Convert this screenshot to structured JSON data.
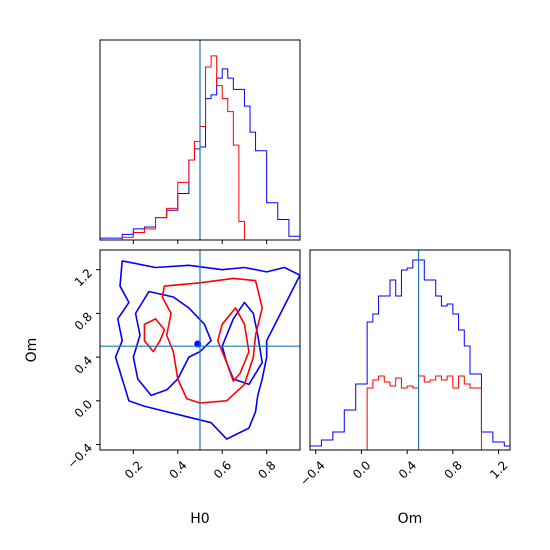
{
  "chart_data": [
    {
      "panel": "H0 marginal",
      "type": "step-histogram",
      "x_range": [
        0.05,
        0.95
      ],
      "bin_edges": [
        0.05,
        0.1,
        0.15,
        0.2,
        0.25,
        0.3,
        0.35,
        0.4,
        0.45,
        0.475,
        0.5,
        0.525,
        0.55,
        0.575,
        0.6,
        0.625,
        0.65,
        0.675,
        0.7,
        0.725,
        0.75,
        0.8,
        0.85,
        0.9,
        0.95
      ],
      "series": [
        {
          "color": "#0000ff",
          "values": [
            0.01,
            0.01,
            0.03,
            0.06,
            0.07,
            0.12,
            0.16,
            0.25,
            0.43,
            0.49,
            0.5,
            0.76,
            0.78,
            0.87,
            0.92,
            0.87,
            0.81,
            0.81,
            0.72,
            0.58,
            0.48,
            0.2,
            0.11,
            0.02
          ]
        },
        {
          "color": "#ff0000",
          "values": [
            0,
            0,
            0.015,
            0.04,
            0.06,
            0.12,
            0.17,
            0.31,
            0.43,
            0.53,
            0.61,
            0.93,
            0.99,
            0.83,
            0.76,
            0.69,
            0.51,
            0.1,
            0,
            0,
            0,
            0,
            0,
            0
          ]
        }
      ],
      "truth": 0.5
    },
    {
      "panel": "Om marginal",
      "type": "step-histogram",
      "x_range": [
        -0.45,
        1.3
      ],
      "bin_edges": [
        -0.45,
        -0.35,
        -0.25,
        -0.15,
        -0.05,
        0.05,
        0.1,
        0.15,
        0.2,
        0.25,
        0.3,
        0.35,
        0.4,
        0.45,
        0.5,
        0.55,
        0.6,
        0.65,
        0.7,
        0.75,
        0.8,
        0.85,
        0.9,
        0.95,
        1.05,
        1.15,
        1.25,
        1.3
      ],
      "series": [
        {
          "color": "#0000ff",
          "values": [
            0.02,
            0.05,
            0.09,
            0.2,
            0.33,
            0.64,
            0.68,
            0.77,
            0.77,
            0.85,
            0.77,
            0.9,
            0.91,
            0.95,
            0.95,
            0.85,
            0.85,
            0.77,
            0.72,
            0.73,
            0.68,
            0.6,
            0.52,
            0.38,
            0.09,
            0.04,
            0.02
          ]
        },
        {
          "color": "#ff0000",
          "values": [
            0,
            0,
            0,
            0,
            0,
            0.31,
            0.35,
            0.37,
            0.34,
            0.32,
            0.36,
            0.31,
            0.32,
            0.31,
            0.37,
            0.34,
            0.35,
            0.37,
            0.35,
            0.37,
            0.31,
            0.37,
            0.33,
            0.31,
            0,
            0,
            0
          ]
        }
      ],
      "truth": 0.5
    },
    {
      "panel": "H0 vs Om joint",
      "type": "contour",
      "x_range": [
        0.05,
        0.95
      ],
      "y_range": [
        -0.45,
        1.38
      ],
      "truth": {
        "x": 0.5,
        "y": 0.5
      },
      "series": [
        {
          "color": "#0000ff",
          "contours": [
            [
              [
                0.15,
                1.28
              ],
              [
                0.3,
                1.22
              ],
              [
                0.45,
                1.24
              ],
              [
                0.6,
                1.2
              ],
              [
                0.7,
                1.22
              ],
              [
                0.8,
                1.18
              ],
              [
                0.88,
                1.22
              ],
              [
                0.95,
                1.15
              ],
              [
                0.9,
                0.95
              ],
              [
                0.85,
                0.75
              ],
              [
                0.8,
                0.55
              ],
              [
                0.8,
                0.4
              ],
              [
                0.78,
                0.2
              ],
              [
                0.76,
                0.05
              ],
              [
                0.75,
                -0.1
              ],
              [
                0.72,
                -0.25
              ],
              [
                0.62,
                -0.35
              ],
              [
                0.55,
                -0.2
              ],
              [
                0.45,
                -0.15
              ],
              [
                0.35,
                -0.1
              ],
              [
                0.25,
                -0.05
              ],
              [
                0.18,
                0.0
              ],
              [
                0.15,
                0.2
              ],
              [
                0.12,
                0.4
              ],
              [
                0.15,
                0.55
              ],
              [
                0.13,
                0.75
              ],
              [
                0.18,
                0.9
              ],
              [
                0.14,
                1.05
              ],
              [
                0.15,
                1.28
              ]
            ],
            [
              [
                0.27,
                1.0
              ],
              [
                0.38,
                0.95
              ],
              [
                0.45,
                0.85
              ],
              [
                0.52,
                0.7
              ],
              [
                0.55,
                0.55
              ],
              [
                0.5,
                0.45
              ],
              [
                0.45,
                0.4
              ],
              [
                0.4,
                0.2
              ],
              [
                0.35,
                0.1
              ],
              [
                0.28,
                0.05
              ],
              [
                0.22,
                0.2
              ],
              [
                0.2,
                0.4
              ],
              [
                0.23,
                0.6
              ],
              [
                0.21,
                0.8
              ],
              [
                0.27,
                1.0
              ]
            ],
            [
              [
                0.6,
                0.5
              ],
              [
                0.62,
                0.35
              ],
              [
                0.65,
                0.2
              ],
              [
                0.72,
                0.15
              ],
              [
                0.78,
                0.35
              ],
              [
                0.76,
                0.6
              ],
              [
                0.74,
                0.8
              ],
              [
                0.7,
                0.9
              ],
              [
                0.65,
                0.75
              ],
              [
                0.6,
                0.5
              ]
            ]
          ]
        },
        {
          "color": "#ff0000",
          "contours": [
            [
              [
                0.34,
                1.05
              ],
              [
                0.5,
                1.08
              ],
              [
                0.65,
                1.12
              ],
              [
                0.75,
                1.1
              ],
              [
                0.78,
                0.85
              ],
              [
                0.75,
                0.6
              ],
              [
                0.74,
                0.4
              ],
              [
                0.7,
                0.15
              ],
              [
                0.62,
                0.0
              ],
              [
                0.5,
                -0.02
              ],
              [
                0.44,
                0.02
              ],
              [
                0.4,
                0.2
              ],
              [
                0.38,
                0.45
              ],
              [
                0.35,
                0.6
              ],
              [
                0.37,
                0.8
              ],
              [
                0.33,
                0.95
              ],
              [
                0.34,
                1.05
              ]
            ],
            [
              [
                0.3,
                0.75
              ],
              [
                0.34,
                0.65
              ],
              [
                0.32,
                0.55
              ],
              [
                0.29,
                0.45
              ],
              [
                0.25,
                0.55
              ],
              [
                0.25,
                0.7
              ],
              [
                0.3,
                0.75
              ]
            ],
            [
              [
                0.58,
                0.55
              ],
              [
                0.62,
                0.35
              ],
              [
                0.65,
                0.18
              ],
              [
                0.68,
                0.25
              ],
              [
                0.72,
                0.45
              ],
              [
                0.7,
                0.7
              ],
              [
                0.66,
                0.85
              ],
              [
                0.6,
                0.7
              ],
              [
                0.58,
                0.55
              ]
            ]
          ]
        }
      ]
    }
  ],
  "labels": {
    "x_bottom_left": "H0",
    "y_bottom_left": "Om",
    "x_bottom_right": "Om"
  },
  "ticks": {
    "h0": [
      "0.2",
      "0.4",
      "0.6",
      "0.8"
    ],
    "om": [
      "−0.4",
      "0.0",
      "0.4",
      "0.8",
      "1.2"
    ]
  },
  "colors": {
    "blue": "#0000ff",
    "red": "#ff0000",
    "truth": "#1f77b4"
  }
}
